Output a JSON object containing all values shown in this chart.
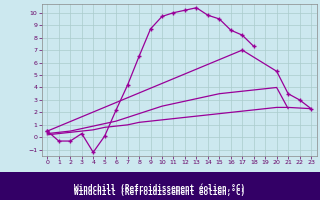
{
  "xlabel": "Windchill (Refroidissement éolien,°C)",
  "bg_color": "#cce8ef",
  "grid_color": "#aacccc",
  "line_color": "#990099",
  "xlabel_bg": "#330066",
  "xlabel_fg": "#ffffff",
  "xlim": [
    -0.5,
    23.5
  ],
  "ylim": [
    -1.5,
    10.7
  ],
  "xticks": [
    0,
    1,
    2,
    3,
    4,
    5,
    6,
    7,
    8,
    9,
    10,
    11,
    12,
    13,
    14,
    15,
    16,
    17,
    18,
    19,
    20,
    21,
    22,
    23
  ],
  "yticks": [
    -1,
    0,
    1,
    2,
    3,
    4,
    5,
    6,
    7,
    8,
    9,
    10
  ],
  "s1x": [
    0,
    1,
    2,
    3,
    4,
    5,
    6,
    7,
    8,
    9,
    10,
    11,
    12,
    13,
    14,
    15,
    16,
    17,
    18
  ],
  "s1y": [
    0.5,
    -0.3,
    -0.3,
    0.3,
    -1.2,
    0.1,
    2.2,
    4.2,
    6.5,
    8.7,
    9.7,
    10.0,
    10.2,
    10.4,
    9.8,
    9.5,
    8.6,
    8.2,
    7.3
  ],
  "s2x": [
    0,
    17,
    20,
    21,
    22,
    23
  ],
  "s2y": [
    0.5,
    7.0,
    5.3,
    3.5,
    3.0,
    2.3
  ],
  "s3x": [
    0,
    1,
    2,
    3,
    4,
    5,
    6,
    7,
    8,
    9,
    10,
    11,
    12,
    13,
    14,
    15,
    16,
    17,
    18,
    19,
    20,
    21
  ],
  "s3y": [
    0.3,
    0.4,
    0.5,
    0.7,
    0.9,
    1.1,
    1.3,
    1.6,
    1.9,
    2.2,
    2.5,
    2.7,
    2.9,
    3.1,
    3.3,
    3.5,
    3.6,
    3.7,
    3.8,
    3.9,
    4.0,
    2.3
  ],
  "s4x": [
    0,
    1,
    2,
    3,
    4,
    5,
    6,
    7,
    8,
    9,
    10,
    11,
    12,
    13,
    14,
    15,
    16,
    17,
    18,
    19,
    20,
    21,
    22,
    23
  ],
  "s4y": [
    0.2,
    0.3,
    0.4,
    0.5,
    0.6,
    0.8,
    0.9,
    1.0,
    1.2,
    1.3,
    1.4,
    1.5,
    1.6,
    1.7,
    1.8,
    1.9,
    2.0,
    2.1,
    2.2,
    2.3,
    2.4,
    2.4,
    2.35,
    2.3
  ]
}
